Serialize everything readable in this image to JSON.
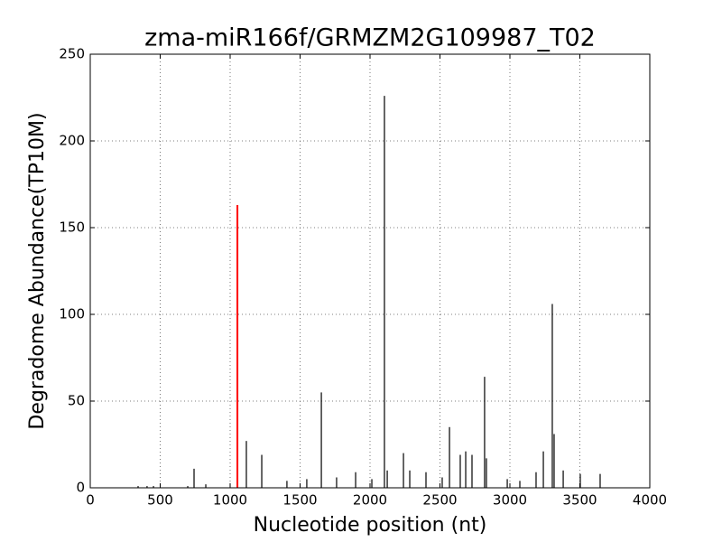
{
  "chart_data": {
    "type": "stem",
    "title": "zma-miR166f/GRMZM2G109987_T02",
    "x_label": "Nucleotide position (nt)",
    "y_label": "Degradome Abundance(TP10M)",
    "xlim": [
      0,
      4000
    ],
    "xticks": [
      0,
      500,
      1000,
      1500,
      2000,
      2500,
      3000,
      3500,
      4000
    ],
    "ylim": [
      0,
      250
    ],
    "yticks": [
      0,
      50,
      100,
      150,
      200,
      250
    ],
    "grid": true,
    "series": [
      {
        "color": "#000000",
        "x": [
          342,
          406,
          452,
          697,
          742,
          826,
          1116,
          1226,
          1406,
          1548,
          1652,
          1761,
          1897,
          2013,
          2103,
          2123,
          2239,
          2284,
          2400,
          2516,
          2568,
          2645,
          2684,
          2729,
          2819,
          2832,
          2981,
          3071,
          3187,
          3239,
          3303,
          3316,
          3381,
          3503,
          3645
        ],
        "values": [
          1,
          1,
          1,
          1,
          11,
          2,
          27,
          19,
          4,
          5,
          55,
          6,
          9,
          5,
          226,
          10,
          20,
          10,
          9,
          6,
          35,
          19,
          21,
          19,
          64,
          17,
          5,
          4,
          9,
          21,
          106,
          31,
          10,
          8,
          8
        ]
      },
      {
        "color": "#ff0000",
        "x": [
          1052
        ],
        "values": [
          163
        ]
      }
    ]
  }
}
